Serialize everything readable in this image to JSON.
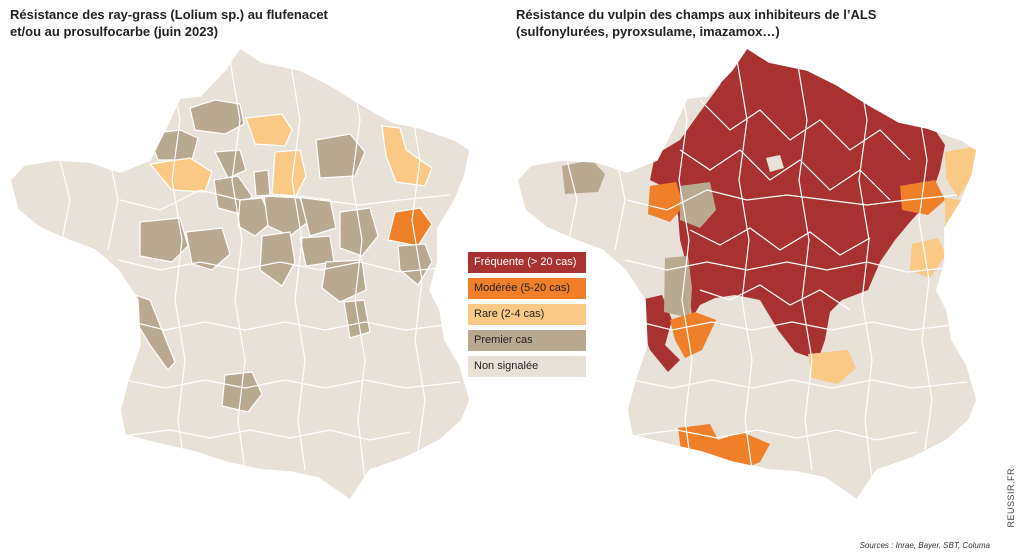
{
  "maps": [
    {
      "title_line1": "Résistance des ray-grass (Lolium sp.) au flufenacet",
      "title_line2": "et/ou au prosulfocarbe (juin 2023)"
    },
    {
      "title_line1": "Résistance du vulpin des champs aux inhibiteurs de l’ALS",
      "title_line2": "(sulfonylurées, pyroxsulame, imazamox…)"
    }
  ],
  "legend": [
    {
      "label": "Fréquente (> 20 cas)",
      "color": "#a83232",
      "text_color": "#ffffff"
    },
    {
      "label": "Modérée (5-20 cas)",
      "color": "#f07f2a",
      "text_color": "#222222"
    },
    {
      "label": "Rare (2-4 cas)",
      "color": "#f9c985",
      "text_color": "#222222"
    },
    {
      "label": "Premier cas",
      "color": "#baa991",
      "text_color": "#222222"
    },
    {
      "label": "Non signalée",
      "color": "#e7e1d8",
      "text_color": "#222222"
    }
  ],
  "source": "Sources : Inrae, Bayer, SBT, Columa",
  "brand": "REUSSIR.FR"
}
